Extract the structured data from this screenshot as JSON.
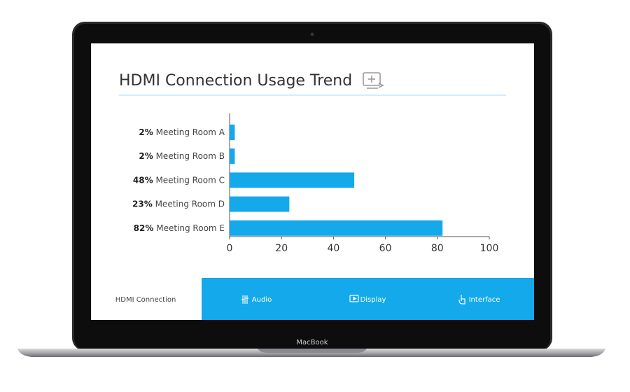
{
  "chart_data": {
    "type": "bar",
    "orientation": "horizontal",
    "title": "HDMI Connection Usage Trend",
    "categories": [
      "Meeting Room A",
      "Meeting Room B",
      "Meeting Room C",
      "Meeting Room D",
      "Meeting Room E"
    ],
    "values": [
      2,
      2,
      48,
      23,
      82
    ],
    "value_labels": [
      "2%",
      "2%",
      "48%",
      "23%",
      "82%"
    ],
    "color": "#14a9ea",
    "xlim": [
      0,
      100
    ],
    "xticks": [
      0,
      20,
      40,
      60,
      80,
      100
    ]
  },
  "tabs": [
    "HDMI Connection",
    "Audio",
    "Display",
    "Interface"
  ],
  "device_label": "MacBook"
}
